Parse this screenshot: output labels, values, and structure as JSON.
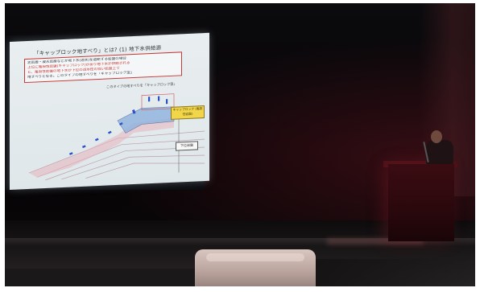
{
  "photo": {
    "subject": "Lecture hall presentation with projected slide"
  },
  "slide": {
    "title": "「キャップロック地すべり」とは? (1) 地下水供給源",
    "text_lines": [
      "泥岩層・凝灰岩層などが地下水(透水)を遮断する岩盤の場合",
      "上位に亀裂性岩盤(キャップロック)があり地下水が供給される",
      "と、亀裂性岩盤の地下水が下位の透水性の低い岩盤上で",
      "地すべりとなる。このタイプの地すべりを「キャップロック型」"
    ],
    "caption": "このタイプの地すべりを「キャップロック型」",
    "label_caprock": "キャップロック (亀裂性岩盤)",
    "label_lower": "下位岩盤"
  },
  "colors": {
    "slide_red": "#c83232",
    "caprock_yellow": "#f2d64a",
    "arrow_blue": "#2a52c8",
    "lectern_red": "#3a0c12"
  }
}
